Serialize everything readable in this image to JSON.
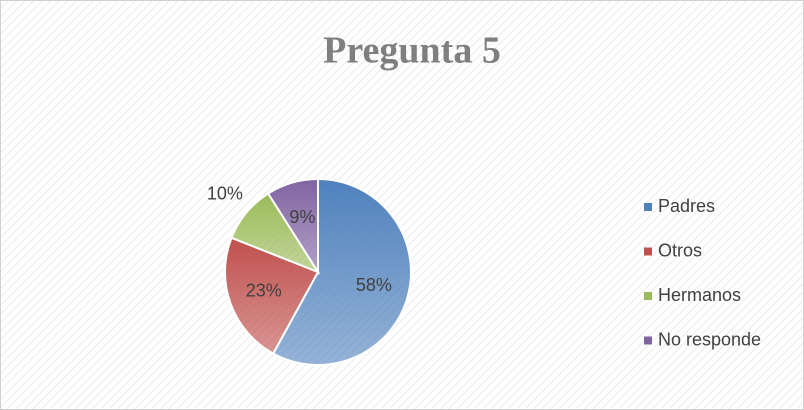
{
  "chart_data": {
    "type": "pie",
    "title": "Pregunta 5",
    "categories": [
      "Padres",
      "Otros",
      "Hermanos",
      "No responde"
    ],
    "values": [
      58,
      23,
      10,
      9
    ],
    "value_labels": [
      "58%",
      "23%",
      "10%",
      "9%"
    ],
    "colors": [
      "#4f81bd",
      "#c0504d",
      "#9bbb59",
      "#8064a2"
    ],
    "legend": "right"
  }
}
